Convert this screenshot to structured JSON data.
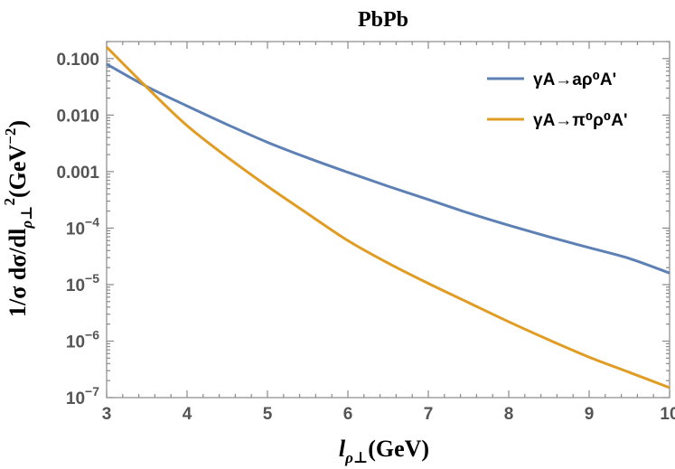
{
  "chart_data": {
    "type": "line",
    "title": "PbPb",
    "xlabel_main": "l",
    "xlabel_sub": "ρ⊥",
    "xlabel_rest": "(GeV)",
    "ylabel_main": "1/σ dσ/dl",
    "ylabel_sub": "ρ⊥",
    "ylabel_sup": "2",
    "ylabel_unit": "(GeV",
    "ylabel_unit_sup": "−2",
    "ylabel_unit_close": ")",
    "xlim": [
      3,
      10
    ],
    "ylim": [
      1e-07,
      0.2
    ],
    "yscale": "log",
    "grid": false,
    "legend_position": "top-right",
    "x_ticks": [
      3,
      4,
      5,
      6,
      7,
      8,
      9,
      10
    ],
    "x_tick_labels": [
      "3",
      "4",
      "5",
      "6",
      "7",
      "8",
      "9",
      "10"
    ],
    "y_ticks": [
      {
        "value": 0.1,
        "label": "0.100",
        "base": "",
        "exp": ""
      },
      {
        "value": 0.01,
        "label": "0.010",
        "base": "",
        "exp": ""
      },
      {
        "value": 0.001,
        "label": "0.001",
        "base": "",
        "exp": ""
      },
      {
        "value": 0.0001,
        "label": "",
        "base": "10",
        "exp": "−4"
      },
      {
        "value": 1e-05,
        "label": "",
        "base": "10",
        "exp": "−5"
      },
      {
        "value": 1e-06,
        "label": "",
        "base": "10",
        "exp": "−6"
      },
      {
        "value": 1e-07,
        "label": "",
        "base": "10",
        "exp": "−7"
      }
    ],
    "series": [
      {
        "name": "γA→aρ⁰A'",
        "color": "#5e81b5",
        "x": [
          3,
          3.5,
          4,
          4.5,
          5,
          5.5,
          6,
          6.5,
          7,
          7.5,
          8,
          8.5,
          9,
          9.5,
          10
        ],
        "y": [
          0.08,
          0.032,
          0.0145,
          0.0068,
          0.0033,
          0.00175,
          0.00097,
          0.00055,
          0.00032,
          0.000185,
          0.000112,
          7e-05,
          4.5e-05,
          2.9e-05,
          1.6e-05
        ]
      },
      {
        "name": "γA→π⁰ρ⁰A'",
        "color": "#e19c24",
        "x": [
          3,
          3.5,
          4,
          4.5,
          5,
          5.5,
          6,
          6.5,
          7,
          7.5,
          8,
          8.5,
          9,
          9.5,
          10
        ],
        "y": [
          0.16,
          0.031,
          0.0065,
          0.0018,
          0.00055,
          0.00018,
          6e-05,
          2.4e-05,
          1.05e-05,
          4.8e-06,
          2.2e-06,
          1.05e-06,
          5.2e-07,
          2.8e-07,
          1.5e-07
        ]
      }
    ]
  }
}
